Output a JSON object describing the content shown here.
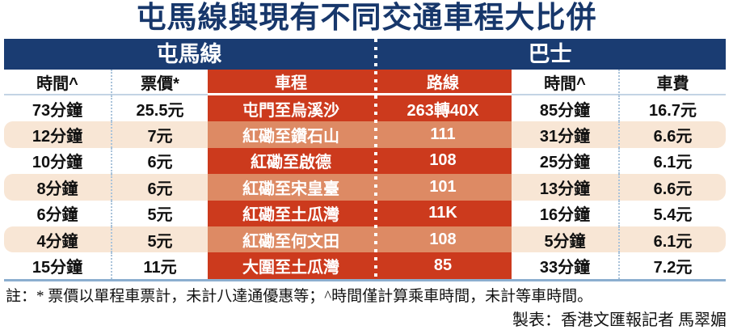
{
  "chart_data": {
    "type": "table",
    "title": "屯馬線與現有不同交通車程大比併",
    "group_headers": [
      "屯馬線",
      "巴士"
    ],
    "columns": [
      "時間^",
      "票價*",
      "車程",
      "路線",
      "時間^",
      "車費"
    ],
    "rows": [
      [
        "73分鐘",
        "25.5元",
        "屯門至烏溪沙",
        "263轉40X",
        "85分鐘",
        "16.7元"
      ],
      [
        "12分鐘",
        "7元",
        "紅磡至鑽石山",
        "111",
        "31分鐘",
        "6.6元"
      ],
      [
        "10分鐘",
        "6元",
        "紅磡至啟德",
        "108",
        "25分鐘",
        "6.1元"
      ],
      [
        "8分鐘",
        "6元",
        "紅磡至宋皇臺",
        "101",
        "13分鐘",
        "6.6元"
      ],
      [
        "6分鐘",
        "5元",
        "紅磡至土瓜灣",
        "11K",
        "16分鐘",
        "5.4元"
      ],
      [
        "4分鐘",
        "5元",
        "紅磡至何文田",
        "108",
        "5分鐘",
        "6.1元"
      ],
      [
        "15分鐘",
        "11元",
        "大圍至土瓜灣",
        "85",
        "33分鐘",
        "7.2元"
      ]
    ],
    "footnote": "註：* 票價以單程車票計，未計八達通優惠等；^時間僅計算乘車時間，未計等車時間。",
    "credit": "製表：香港文匯報記者 馬翠媚",
    "layout": {
      "legend": "none",
      "grid": "dotted-column-separators"
    }
  },
  "colors": {
    "navy_band": "#1a3c72",
    "title_navy": "#17376b",
    "dark_red_cell": "#cc3a1d",
    "light_red_cell": "#dd8a64",
    "peach_row": "#f8e6d5",
    "dotted_separator": "#aac3da",
    "bottom_border": "#8caecf",
    "text_black": "#111111",
    "text_white": "#ffffff"
  }
}
